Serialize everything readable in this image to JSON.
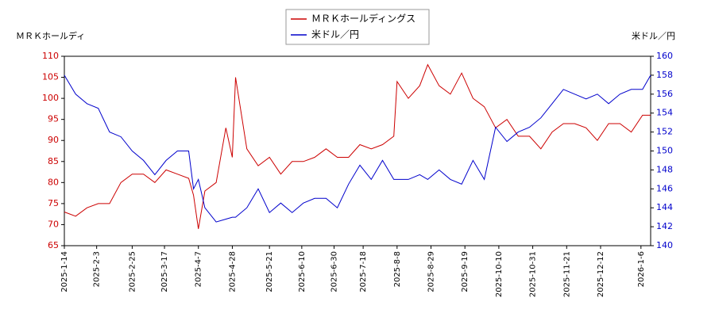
{
  "chart_data": {
    "type": "line",
    "legend": "upper center",
    "y_label": "ＭＲＫホールディ",
    "y2_label": "米ドル／円",
    "x": [
      "2025-1-14",
      "2025-1-21",
      "2025-1-28",
      "2025-2-4",
      "2025-2-11",
      "2025-2-18",
      "2025-2-25",
      "2025-3-4",
      "2025-3-11",
      "2025-3-18",
      "2025-3-25",
      "2025-4-1",
      "2025-4-4",
      "2025-4-7",
      "2025-4-11",
      "2025-4-18",
      "2025-4-24",
      "2025-4-28",
      "2025-4-30",
      "2025-5-7",
      "2025-5-14",
      "2025-5-21",
      "2025-5-28",
      "2025-6-4",
      "2025-6-11",
      "2025-6-18",
      "2025-6-25",
      "2025-7-2",
      "2025-7-9",
      "2025-7-16",
      "2025-7-23",
      "2025-7-30",
      "2025-8-6",
      "2025-8-8",
      "2025-8-15",
      "2025-8-22",
      "2025-8-27",
      "2025-9-3",
      "2025-9-10",
      "2025-9-17",
      "2025-9-24",
      "2025-10-1",
      "2025-10-8",
      "2025-10-15",
      "2025-10-22",
      "2025-10-29",
      "2025-11-5",
      "2025-11-12",
      "2025-11-19",
      "2025-11-26",
      "2025-12-3",
      "2025-12-10",
      "2025-12-17",
      "2025-12-24",
      "2025-12-31",
      "2026-1-7",
      "2026-1-12"
    ],
    "series": [
      {
        "name": "ＭＲＫホールディングス",
        "color": "#cc0000",
        "values": [
          73,
          72,
          74,
          75,
          75,
          80,
          82,
          82,
          80,
          83,
          82,
          81,
          77,
          69,
          78,
          80,
          93,
          86,
          105,
          88,
          84,
          86,
          82,
          85,
          85,
          86,
          88,
          86,
          86,
          89,
          88,
          89,
          91,
          104,
          100,
          103,
          108,
          103,
          101,
          106,
          100,
          98,
          93,
          95,
          91,
          91,
          88,
          92,
          94,
          94,
          93,
          90,
          94,
          94,
          92,
          96,
          96
        ]
      },
      {
        "name": "米ドル／円",
        "color": "#0000cc",
        "axis": "y2",
        "values": [
          158,
          156,
          155,
          154.5,
          152,
          151.5,
          150,
          149,
          147.5,
          149,
          150,
          150,
          146,
          147,
          144,
          142.5,
          142.8,
          143,
          143,
          144,
          146,
          143.5,
          144.5,
          143.5,
          144.5,
          145,
          145,
          144,
          146.5,
          148.5,
          147,
          149,
          147,
          147,
          147,
          147.5,
          147,
          148,
          147,
          146.5,
          149,
          147,
          152.5,
          151,
          152,
          152.5,
          153.5,
          155,
          156.5,
          156,
          155.5,
          156,
          155,
          156,
          156.5,
          156.5,
          158
        ]
      }
    ],
    "xlim": [
      "2025-1-14",
      "2026-1-12"
    ],
    "xticks": [
      "2025-1-14",
      "2025-2-3",
      "2025-2-25",
      "2025-3-17",
      "2025-4-7",
      "2025-4-28",
      "2025-5-21",
      "2025-6-10",
      "2025-6-30",
      "2025-7-18",
      "2025-8-8",
      "2025-8-29",
      "2025-9-19",
      "2025-10-10",
      "2025-10-31",
      "2025-11-21",
      "2025-12-12",
      "2026-1-6"
    ],
    "ylim": [
      65,
      110
    ],
    "yticks": [
      65,
      70,
      75,
      80,
      85,
      90,
      95,
      100,
      105,
      110
    ],
    "y2lim": [
      140,
      160
    ],
    "y2ticks": [
      140,
      142,
      144,
      146,
      148,
      150,
      152,
      154,
      156,
      158,
      160
    ]
  }
}
